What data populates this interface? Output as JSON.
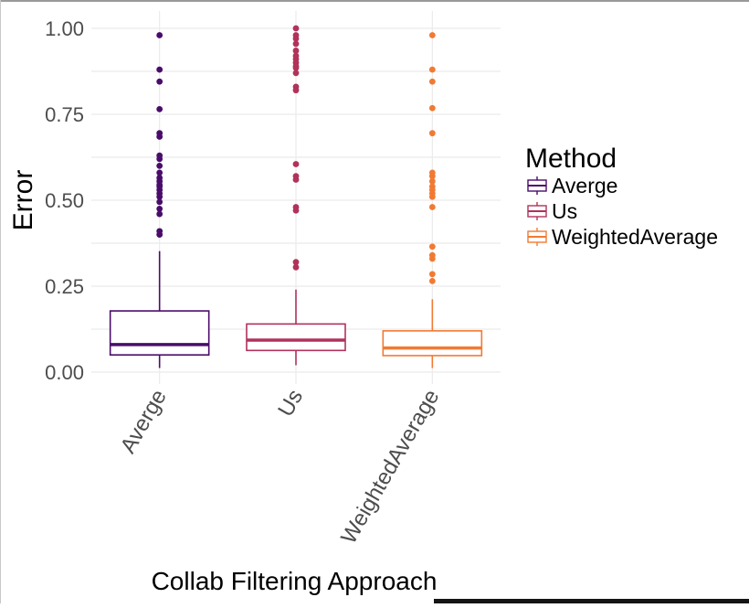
{
  "chart_data": {
    "type": "boxplot",
    "xlabel": "Collab Filtering Approach",
    "ylabel": "Error",
    "ylim": [
      0,
      1
    ],
    "yticks": [
      "0.00",
      "0.25",
      "0.50",
      "0.75",
      "1.00"
    ],
    "ytick_values": [
      0,
      0.25,
      0.5,
      0.75,
      1.0
    ],
    "grid": true,
    "legend": {
      "title": "Method",
      "placement": "right"
    },
    "categories": [
      "Averge",
      "Us",
      "WeightedAverage"
    ],
    "series": [
      {
        "name": "Averge",
        "color": "#4a0c6b",
        "whisker_low": 0.012,
        "q1": 0.05,
        "median": 0.08,
        "q3": 0.178,
        "whisker_high": 0.352,
        "outliers": [
          0.98,
          0.88,
          0.845,
          0.765,
          0.695,
          0.685,
          0.63,
          0.62,
          0.6,
          0.58,
          0.565,
          0.555,
          0.545,
          0.54,
          0.53,
          0.52,
          0.51,
          0.495,
          0.475,
          0.46,
          0.41,
          0.4
        ]
      },
      {
        "name": "Us",
        "color": "#b1325a",
        "whisker_low": 0.02,
        "q1": 0.063,
        "median": 0.093,
        "q3": 0.14,
        "whisker_high": 0.24,
        "outliers": [
          1.0,
          0.98,
          0.97,
          0.955,
          0.935,
          0.92,
          0.91,
          0.9,
          0.89,
          0.885,
          0.87,
          0.83,
          0.82,
          0.605,
          0.57,
          0.56,
          0.48,
          0.47,
          0.32,
          0.305
        ]
      },
      {
        "name": "WeightedAverage",
        "color": "#f17a33",
        "whisker_low": 0.012,
        "q1": 0.048,
        "median": 0.07,
        "q3": 0.12,
        "whisker_high": 0.212,
        "outliers": [
          0.98,
          0.88,
          0.845,
          0.768,
          0.695,
          0.58,
          0.57,
          0.555,
          0.54,
          0.53,
          0.52,
          0.51,
          0.48,
          0.365,
          0.34,
          0.33,
          0.285,
          0.265
        ]
      }
    ]
  }
}
